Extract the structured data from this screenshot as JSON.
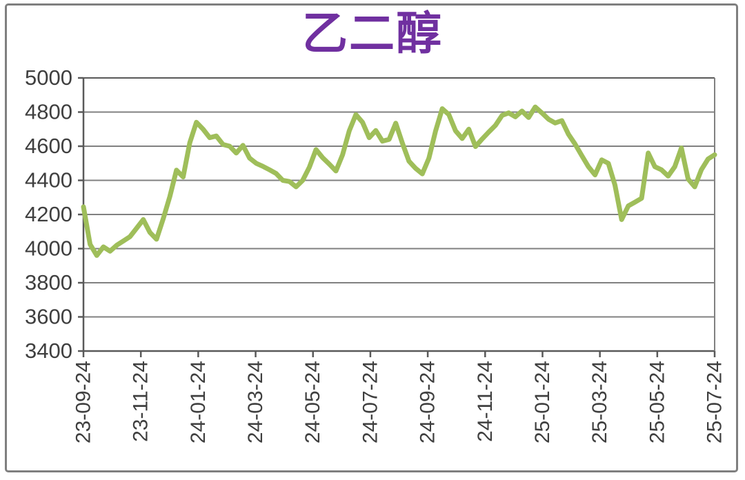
{
  "figure": {
    "background": "#ffffff",
    "border_color": "#7f7f7f"
  },
  "chart_data": {
    "type": "line",
    "title": "乙二醇",
    "title_color": "#7030A0",
    "series_name": "乙二醇",
    "line_color": "#9FBE5A",
    "grid_color": "#808080",
    "axis_color": "#595959",
    "label_color": "#3f3f3f",
    "grid": true,
    "legend": false,
    "ylim": [
      3400,
      5000
    ],
    "y_tick_step": 200,
    "y_tick_labels": [
      "5000",
      "4800",
      "4600",
      "4400",
      "4200",
      "4000",
      "3800",
      "3600",
      "3400"
    ],
    "x_tick_labels": [
      "23-09-24",
      "23-11-24",
      "24-01-24",
      "24-03-24",
      "24-05-24",
      "24-07-24",
      "24-09-24",
      "24-11-24",
      "25-01-24",
      "25-03-24",
      "25-05-24",
      "25-07-24"
    ],
    "x_start_date": "2023-09-24",
    "x_interval": "weekly",
    "values": [
      4245,
      4025,
      3960,
      4010,
      3985,
      4020,
      4045,
      4070,
      4120,
      4170,
      4095,
      4055,
      4175,
      4305,
      4460,
      4420,
      4620,
      4740,
      4700,
      4650,
      4660,
      4610,
      4600,
      4560,
      4605,
      4530,
      4500,
      4482,
      4462,
      4440,
      4400,
      4393,
      4362,
      4400,
      4477,
      4580,
      4533,
      4495,
      4455,
      4550,
      4690,
      4785,
      4740,
      4650,
      4692,
      4630,
      4640,
      4735,
      4618,
      4512,
      4470,
      4438,
      4530,
      4690,
      4820,
      4785,
      4690,
      4645,
      4700,
      4598,
      4642,
      4683,
      4722,
      4780,
      4795,
      4772,
      4806,
      4768,
      4830,
      4795,
      4758,
      4736,
      4750,
      4670,
      4612,
      4545,
      4480,
      4432,
      4520,
      4500,
      4372,
      4170,
      4250,
      4272,
      4295,
      4560,
      4480,
      4462,
      4425,
      4480,
      4590,
      4408,
      4362,
      4462,
      4525,
      4550
    ]
  }
}
